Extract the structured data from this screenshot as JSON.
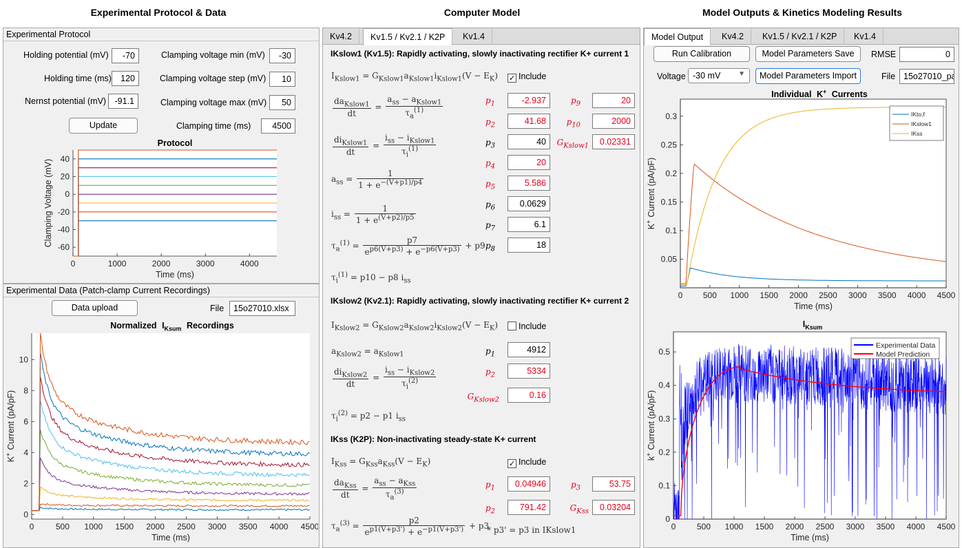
{
  "headers": {
    "left": "Experimental Protocol & Data",
    "middle": "Computer Model",
    "right": "Model Outputs & Kinetics Modeling Results"
  },
  "protocol": {
    "title": "Experimental Protocol",
    "holding_potential_label": "Holding potential (mV)",
    "holding_potential": "-70",
    "holding_time_label": "Holding time (ms)",
    "holding_time": "120",
    "nernst_label": "Nernst potential (mV)",
    "nernst": "-91.1",
    "clamp_min_label": "Clamping voltage min (mV)",
    "clamp_min": "-30",
    "clamp_step_label": "Clamping voltage step (mV)",
    "clamp_step": "10",
    "clamp_max_label": "Clamping voltage max (mV)",
    "clamp_max": "50",
    "clamp_time_label": "Clamping time (ms)",
    "clamp_time": "4500",
    "update_label": "Update"
  },
  "protocol_chart": {
    "title": "Protocol",
    "xlabel": "Time (ms)",
    "ylabel": "Clamping Voltage (mV)"
  },
  "exp_data": {
    "title": "Experimental Data (Patch-clamp Current Recordings)",
    "upload_label": "Data upload",
    "file_label": "File",
    "file_value": "15o27010.xlsx"
  },
  "recordings_chart": {
    "title": "Normalized",
    "title_sym": "I",
    "title_sub": "Ksum",
    "title_tail": "Recordings",
    "xlabel": "Time (ms)",
    "ylabel": "K",
    "ylabel_sup": "+",
    "ylabel_tail": "Current  (pA/pF)"
  },
  "model": {
    "tabs": [
      "Kv4.2",
      "Kv1.5 / Kv2.1 / K2P",
      "Kv1.4"
    ],
    "active_tab": 1,
    "s1_title": "IKslow1 (Kv1.5): Rapidly activating, slowly inactivating rectifier K+ current 1",
    "s2_title": "IKslow2 (Kv2.1): Rapidly activating, slowly inactivating rectifier K+ current 2",
    "s3_title": "IKss (K2P): Non-inactivating steady-state K+ current",
    "include_label": "Include",
    "s1_include": true,
    "s2_include": false,
    "s3_include": true,
    "s1_params": {
      "p1": "-2.937",
      "p2": "41.68",
      "p3": "40",
      "p4": "20",
      "p5": "5.586",
      "p6": "0.0629",
      "p7": "6.1",
      "p8": "18",
      "p9": "20",
      "p10": "2000",
      "G": "0.02331"
    },
    "s2_params": {
      "p1": "4912",
      "p2": "5334",
      "G": "0.16"
    },
    "s3_params": {
      "p1": "0.04946",
      "p2": "791.42",
      "p3": "53.75",
      "G": "0.03204"
    },
    "s3_note": "* p3' = p3 in IKslow1"
  },
  "outputs": {
    "tabs": [
      "Model Output",
      "Kv4.2",
      "Kv1.5 / Kv2.1 / K2P",
      "Kv1.4"
    ],
    "active_tab": 0,
    "run_label": "Run Calibration",
    "save_label": "Model Parameters Save",
    "import_label": "Model Parameters Import",
    "rmse_label": "RMSE",
    "rmse": "0",
    "voltage_label": "Voltage",
    "voltage": "-30 mV",
    "file_label": "File",
    "file_value": "15o27010_pa"
  },
  "currents_chart": {
    "title": "Individual",
    "title_sym": "K",
    "title_sup": "+",
    "title_tail": "Currents",
    "xlabel": "Time (ms)",
    "ylabel": "K",
    "ylabel_sup": "+",
    "ylabel_tail": "Current  (pA/pF)",
    "legend": [
      "IKto,f",
      "IKslow1",
      "IKss"
    ]
  },
  "ksum_chart": {
    "title": "I",
    "title_sub": "Ksum",
    "xlabel": "Time (ms)",
    "ylabel": "k",
    "ylabel_sup": "+",
    "ylabel_tail": "Current  (pA/pF)",
    "legend": [
      "Experimental Data",
      "Model Prediction"
    ]
  },
  "colors": {
    "matlab": [
      "#0072BD",
      "#D95319",
      "#EDB120",
      "#7E2F8E",
      "#77AC30",
      "#4DBEEE",
      "#A2142F"
    ],
    "red_param": "#e3001b",
    "exp_blue": "#0000ff",
    "model_red": "#ff0000"
  },
  "chart_data": [
    {
      "type": "line",
      "title": "Protocol",
      "xlabel": "Time (ms)",
      "ylabel": "Clamping Voltage (mV)",
      "xlim": [
        0,
        4620
      ],
      "ylim": [
        -70,
        50
      ],
      "xticks": [
        0,
        1000,
        2000,
        3000,
        4000
      ],
      "yticks": [
        -60,
        -40,
        -20,
        0,
        20,
        40
      ],
      "holding": {
        "value": -70,
        "t_end": 120
      },
      "series": [
        {
          "values": [
            -30
          ],
          "color": "#0072BD"
        },
        {
          "values": [
            -20
          ],
          "color": "#D95319"
        },
        {
          "values": [
            -10
          ],
          "color": "#EDB120"
        },
        {
          "values": [
            0
          ],
          "color": "#7E2F8E"
        },
        {
          "values": [
            10
          ],
          "color": "#77AC30"
        },
        {
          "values": [
            20
          ],
          "color": "#4DBEEE"
        },
        {
          "values": [
            30
          ],
          "color": "#A2142F"
        },
        {
          "values": [
            40
          ],
          "color": "#0072BD"
        },
        {
          "values": [
            50
          ],
          "color": "#D95319"
        }
      ]
    },
    {
      "type": "line",
      "title": "Normalized IKsum Recordings",
      "xlabel": "Time (ms)",
      "ylabel": "K+ Current (pA/pF)",
      "xlim": [
        0,
        4500
      ],
      "ylim": [
        -0.3,
        11.7
      ],
      "xticks": [
        0,
        500,
        1000,
        1500,
        2000,
        2500,
        3000,
        3500,
        4000,
        4500
      ],
      "yticks": [
        0,
        2,
        4,
        6,
        8,
        10
      ],
      "series": [
        {
          "color": "#0072BD",
          "peak": 0.45,
          "end": 0.3
        },
        {
          "color": "#D95319",
          "peak": 0.7,
          "end": 0.55
        },
        {
          "color": "#EDB120",
          "peak": 1.8,
          "end": 0.9
        },
        {
          "color": "#7E2F8E",
          "peak": 3.6,
          "end": 1.3
        },
        {
          "color": "#77AC30",
          "peak": 5.5,
          "end": 1.85
        },
        {
          "color": "#4DBEEE",
          "peak": 7.4,
          "end": 2.5
        },
        {
          "color": "#A2142F",
          "peak": 9.0,
          "end": 3.15
        },
        {
          "color": "#0072BD",
          "peak": 10.4,
          "end": 3.85
        },
        {
          "color": "#D95319",
          "peak": 11.6,
          "end": 4.6
        }
      ]
    },
    {
      "type": "line",
      "title": "Individual K+ Currents",
      "xlabel": "Time (ms)",
      "ylabel": "K+ Current (pA/pF)",
      "xlim": [
        0,
        4500
      ],
      "ylim": [
        0,
        0.33
      ],
      "xticks": [
        0,
        500,
        1000,
        1500,
        2000,
        2500,
        3000,
        3500,
        4000,
        4500
      ],
      "yticks": [
        0.05,
        0.1,
        0.15,
        0.2,
        0.25,
        0.3
      ],
      "series": [
        {
          "name": "IKto,f",
          "color": "#0072BD",
          "peak": 0.035,
          "peak_t": 170,
          "end": 0.012
        },
        {
          "name": "IKslow1",
          "color": "#D95319",
          "peak": 0.217,
          "peak_t": 230,
          "end": 0.047
        },
        {
          "name": "IKss",
          "color": "#EDB120",
          "final": 0.316,
          "tau": 520
        }
      ]
    },
    {
      "type": "line",
      "title": "IKsum",
      "xlabel": "Time (ms)",
      "ylabel": "k+ Current (pA/pF)",
      "xlim": [
        0,
        4500
      ],
      "ylim": [
        0,
        0.56
      ],
      "xticks": [
        0,
        500,
        1000,
        1500,
        2000,
        2500,
        3000,
        3500,
        4000,
        4500
      ],
      "yticks": [
        0,
        0.1,
        0.2,
        0.3,
        0.4,
        0.5
      ],
      "series": [
        {
          "name": "Experimental Data",
          "color": "#0000ff",
          "mean_plateau": 0.44
        },
        {
          "name": "Model Prediction",
          "color": "#ff0000",
          "peak": 0.455,
          "peak_t": 1100,
          "end": 0.375
        }
      ]
    }
  ]
}
